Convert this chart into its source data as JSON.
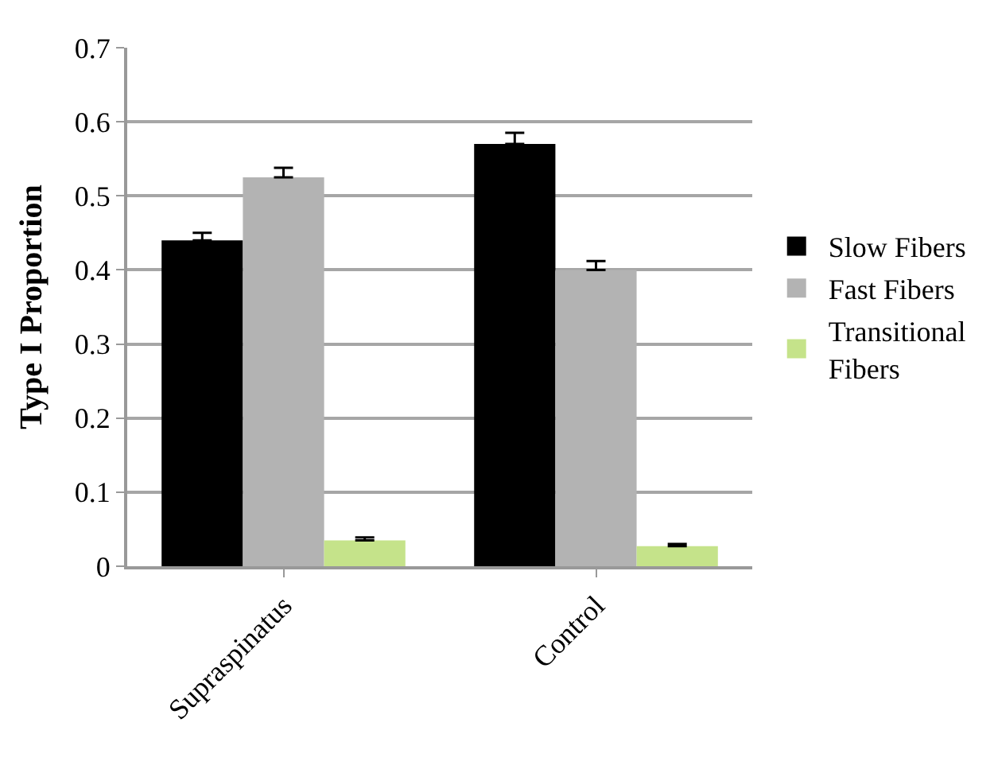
{
  "chart_data": {
    "type": "bar",
    "ylabel": "Type I Proportion",
    "categories": [
      "Supraspinatus",
      "Control"
    ],
    "series": [
      {
        "name": "Slow Fibers",
        "color": "#000000",
        "values": [
          0.44,
          0.57
        ],
        "errors": [
          [
            0.44,
            0.45
          ],
          [
            0.57,
            0.585
          ]
        ]
      },
      {
        "name": "Fast Fibers",
        "color": "#b3b3b3",
        "values": [
          0.525,
          0.4
        ],
        "errors": [
          [
            0.525,
            0.538
          ],
          [
            0.4,
            0.412
          ]
        ]
      },
      {
        "name": "Transitional Fibers",
        "color": "#c5e38a",
        "values": [
          0.035,
          0.027
        ],
        "errors": [
          [
            0.035,
            0.039
          ],
          [
            0.027,
            0.03
          ]
        ]
      }
    ],
    "ylim": [
      0,
      0.7
    ],
    "yticks": [
      0,
      0.1,
      0.2,
      0.3,
      0.4,
      0.5,
      0.6,
      0.7
    ],
    "grid": "y",
    "legend": "right"
  }
}
